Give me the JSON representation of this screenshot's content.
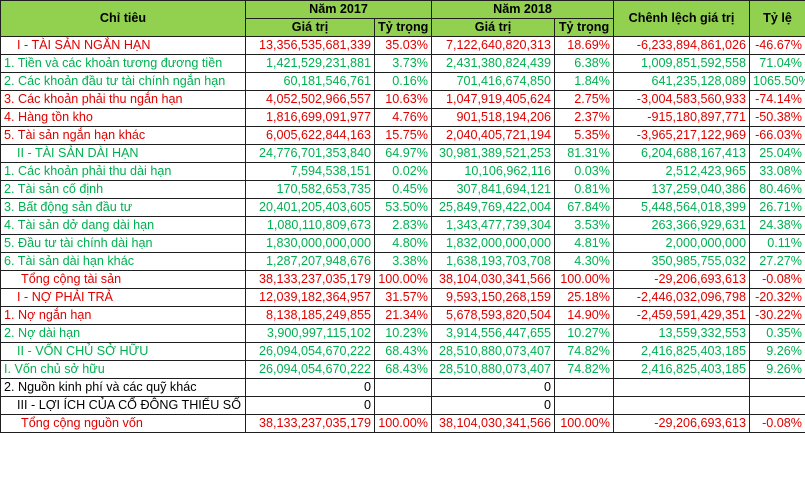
{
  "header": {
    "chi_tieu": "Chỉ tiêu",
    "year_2017": "Năm 2017",
    "year_2018": "Năm 2018",
    "chenh_lech": "Chênh lệch giá trị",
    "ty_le": "Tỷ lệ",
    "gia_tri": "Giá trị",
    "ty_trong": "Tỷ trọng"
  },
  "colors": {
    "header_bg": "#92d050",
    "red_text": "#e00000",
    "green_text": "#00b050",
    "border": "#1f1f1f"
  },
  "rows": [
    {
      "label": "I - TÀI SẢN NGẮN HẠN",
      "v2017": "13,356,535,681,339",
      "p2017": "35.03%",
      "v2018": "7,122,640,820,313",
      "p2018": "18.69%",
      "diff": "-6,233,894,861,026",
      "rate": "-46.67%",
      "color": "red",
      "kind": "section"
    },
    {
      "label": "1. Tiền và các khoản tương đương tiền",
      "v2017": "1,421,529,231,881",
      "p2017": "3.73%",
      "v2018": "2,431,380,824,439",
      "p2018": "6.38%",
      "diff": "1,009,851,592,558",
      "rate": "71.04%",
      "color": "green",
      "kind": "item"
    },
    {
      "label": "2. Các khoản đầu tư tài chính ngắn hạn",
      "v2017": "60,181,546,761",
      "p2017": "0.16%",
      "v2018": "701,416,674,850",
      "p2018": "1.84%",
      "diff": "641,235,128,089",
      "rate": "1065.50%",
      "color": "green",
      "kind": "item"
    },
    {
      "label": "3. Các khoản phải thu ngắn hạn",
      "v2017": "4,052,502,966,557",
      "p2017": "10.63%",
      "v2018": "1,047,919,405,624",
      "p2018": "2.75%",
      "diff": "-3,004,583,560,933",
      "rate": "-74.14%",
      "color": "red",
      "kind": "item"
    },
    {
      "label": "4. Hàng tồn kho",
      "v2017": "1,816,699,091,977",
      "p2017": "4.76%",
      "v2018": "901,518,194,206",
      "p2018": "2.37%",
      "diff": "-915,180,897,771",
      "rate": "-50.38%",
      "color": "red",
      "kind": "item"
    },
    {
      "label": "5. Tài sản ngắn hạn khác",
      "v2017": "6,005,622,844,163",
      "p2017": "15.75%",
      "v2018": "2,040,405,721,194",
      "p2018": "5.35%",
      "diff": "-3,965,217,122,969",
      "rate": "-66.03%",
      "color": "red",
      "kind": "item"
    },
    {
      "label": "II - TÀI SẢN DÀI HẠN",
      "v2017": "24,776,701,353,840",
      "p2017": "64.97%",
      "v2018": "30,981,389,521,253",
      "p2018": "81.31%",
      "diff": "6,204,688,167,413",
      "rate": "25.04%",
      "color": "green",
      "kind": "section"
    },
    {
      "label": "1. Các khoản phải thu dài hạn",
      "v2017": "7,594,538,151",
      "p2017": "0.02%",
      "v2018": "10,106,962,116",
      "p2018": "0.03%",
      "diff": "2,512,423,965",
      "rate": "33.08%",
      "color": "green",
      "kind": "item"
    },
    {
      "label": "2. Tài sản cố định",
      "v2017": "170,582,653,735",
      "p2017": "0.45%",
      "v2018": "307,841,694,121",
      "p2018": "0.81%",
      "diff": "137,259,040,386",
      "rate": "80.46%",
      "color": "green",
      "kind": "item"
    },
    {
      "label": "3. Bất động sản đầu tư",
      "v2017": "20,401,205,403,605",
      "p2017": "53.50%",
      "v2018": "25,849,769,422,004",
      "p2018": "67.84%",
      "diff": "5,448,564,018,399",
      "rate": "26.71%",
      "color": "green",
      "kind": "item"
    },
    {
      "label": "4. Tài sản dở dang dài hạn",
      "v2017": "1,080,110,809,673",
      "p2017": "2.83%",
      "v2018": "1,343,477,739,304",
      "p2018": "3.53%",
      "diff": "263,366,929,631",
      "rate": "24.38%",
      "color": "green",
      "kind": "item"
    },
    {
      "label": "5. Đầu tư tài chính dài hạn",
      "v2017": "1,830,000,000,000",
      "p2017": "4.80%",
      "v2018": "1,832,000,000,000",
      "p2018": "4.81%",
      "diff": "2,000,000,000",
      "rate": "0.11%",
      "color": "green",
      "kind": "item"
    },
    {
      "label": "6. Tài sản dài hạn khác",
      "v2017": "1,287,207,948,676",
      "p2017": "3.38%",
      "v2018": "1,638,193,703,708",
      "p2018": "4.30%",
      "diff": "350,985,755,032",
      "rate": "27.27%",
      "color": "green",
      "kind": "item"
    },
    {
      "label": "Tổng cộng tài sản",
      "v2017": "38,133,237,035,179",
      "p2017": "100.00%",
      "v2018": "38,104,030,341,566",
      "p2018": "100.00%",
      "diff": "-29,206,693,613",
      "rate": "-0.08%",
      "color": "red",
      "kind": "total"
    },
    {
      "label": "I - NỢ PHẢI TRẢ",
      "v2017": "12,039,182,364,957",
      "p2017": "31.57%",
      "v2018": "9,593,150,268,159",
      "p2018": "25.18%",
      "diff": "-2,446,032,096,798",
      "rate": "-20.32%",
      "color": "red",
      "kind": "section"
    },
    {
      "label": "1. Nợ ngắn hạn",
      "v2017": "8,138,185,249,855",
      "p2017": "21.34%",
      "v2018": "5,678,593,820,504",
      "p2018": "14.90%",
      "diff": "-2,459,591,429,351",
      "rate": "-30.22%",
      "color": "red",
      "kind": "item"
    },
    {
      "label": "2. Nợ dài hạn",
      "v2017": "3,900,997,115,102",
      "p2017": "10.23%",
      "v2018": "3,914,556,447,655",
      "p2018": "10.27%",
      "diff": "13,559,332,553",
      "rate": "0.35%",
      "color": "green",
      "kind": "item"
    },
    {
      "label": "II - VỐN CHỦ SỞ HỮU",
      "v2017": "26,094,054,670,222",
      "p2017": "68.43%",
      "v2018": "28,510,880,073,407",
      "p2018": "74.82%",
      "diff": "2,416,825,403,185",
      "rate": "9.26%",
      "color": "green",
      "kind": "section"
    },
    {
      "label": "I. Vốn chủ sở hữu",
      "v2017": "26,094,054,670,222",
      "p2017": "68.43%",
      "v2018": "28,510,880,073,407",
      "p2018": "74.82%",
      "diff": "2,416,825,403,185",
      "rate": "9.26%",
      "color": "green",
      "kind": "item"
    },
    {
      "label": "2. Nguồn kinh phí và các quỹ khác",
      "v2017": "0",
      "p2017": "",
      "v2018": "0",
      "p2018": "",
      "diff": "",
      "rate": "",
      "color": "black",
      "kind": "item"
    },
    {
      "label": "III - LỢI ÍCH CỦA CỔ ĐÔNG THIỂU SỐ",
      "v2017": "0",
      "p2017": "",
      "v2018": "0",
      "p2018": "",
      "diff": "",
      "rate": "",
      "color": "black",
      "kind": "section"
    },
    {
      "label": "Tổng cộng nguồn vốn",
      "v2017": "38,133,237,035,179",
      "p2017": "100.00%",
      "v2018": "38,104,030,341,566",
      "p2018": "100.00%",
      "diff": "-29,206,693,613",
      "rate": "-0.08%",
      "color": "red",
      "kind": "total"
    }
  ]
}
